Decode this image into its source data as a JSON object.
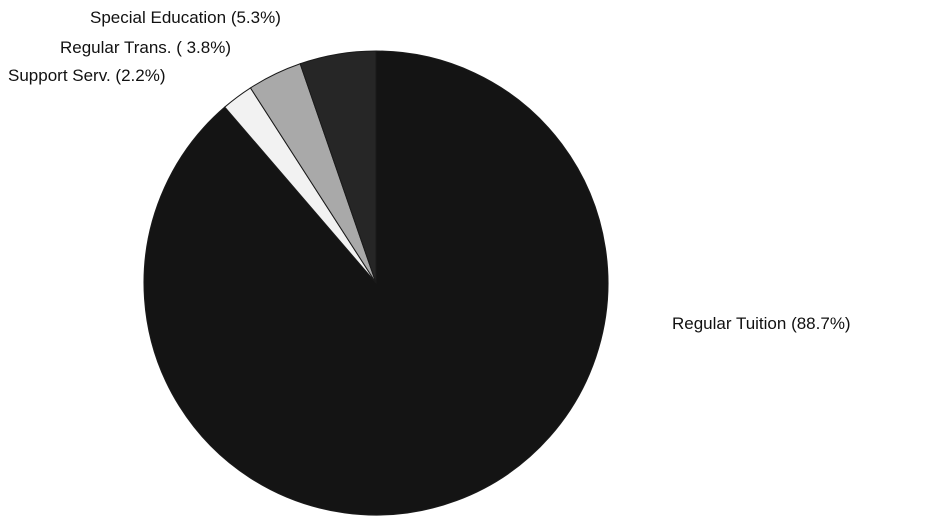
{
  "chart_data": {
    "type": "pie",
    "title": "",
    "start_angle_deg": 0,
    "direction": "clockwise",
    "slices": [
      {
        "label": "Regular Tuition",
        "value": 88.7,
        "display": "Regular Tuition (88.7%)",
        "color": "#141414"
      },
      {
        "label": "Support Serv.",
        "value": 2.2,
        "display": "Support Serv. (2.2%)",
        "color": "#f2f2f2"
      },
      {
        "label": "Regular Trans.",
        "value": 3.8,
        "display": "Regular Trans. ( 3.8%)",
        "color": "#a9a9a9"
      },
      {
        "label": "Special Education",
        "value": 5.3,
        "display": "Special Education (5.3%)",
        "color": "#262626"
      }
    ]
  }
}
